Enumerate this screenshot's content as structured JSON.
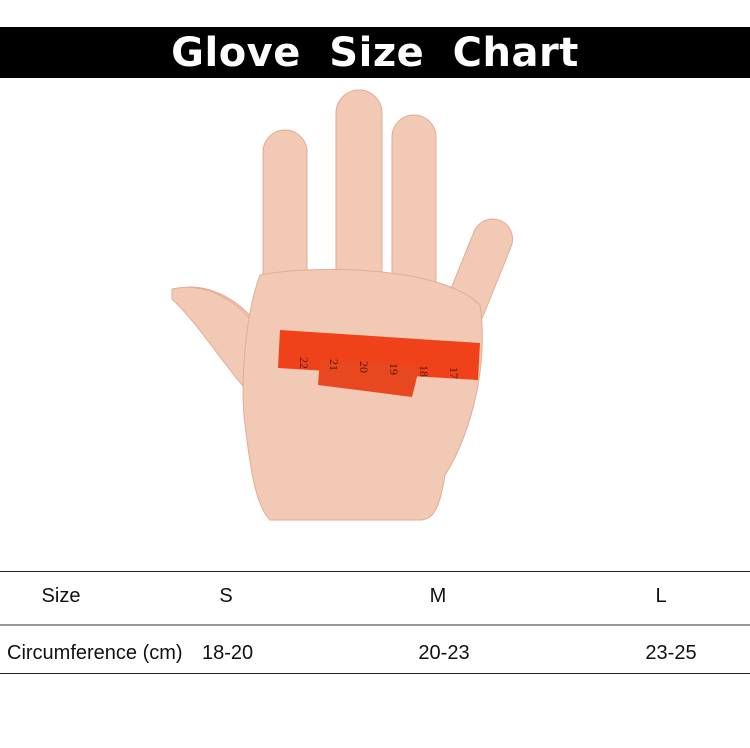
{
  "title": "Glove  Size  Chart",
  "tape_numbers": [
    "22",
    "21",
    "20",
    "19",
    "18",
    "17"
  ],
  "colors": {
    "banner": "#000000",
    "tape": "#f0421a",
    "skin": "#f1c9b4"
  },
  "table": {
    "header": {
      "label": "Size",
      "values": [
        "S",
        "M",
        "L"
      ]
    },
    "row": {
      "label": "Circumference (cm)",
      "values": [
        "18-20",
        "20-23",
        "23-25"
      ]
    }
  }
}
